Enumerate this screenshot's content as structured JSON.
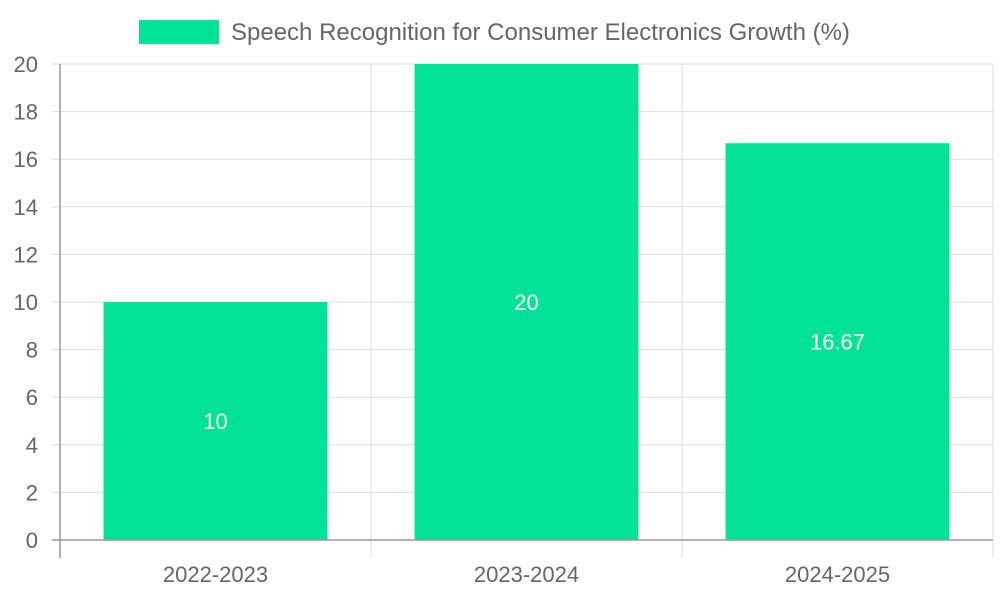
{
  "chart_data": {
    "type": "bar",
    "categories": [
      "2022-2023",
      "2023-2024",
      "2024-2025"
    ],
    "series": [
      {
        "name": "Speech Recognition for Consumer Electronics Growth (%)",
        "values": [
          10,
          20,
          16.67
        ],
        "labels": [
          "10",
          "20",
          "16.67"
        ],
        "color": "#00e396"
      }
    ],
    "ylim": [
      0,
      20
    ],
    "yticks": [
      "0",
      "2",
      "4",
      "6",
      "8",
      "10",
      "12",
      "14",
      "16",
      "18",
      "20"
    ],
    "grid": true,
    "legend": "top"
  }
}
